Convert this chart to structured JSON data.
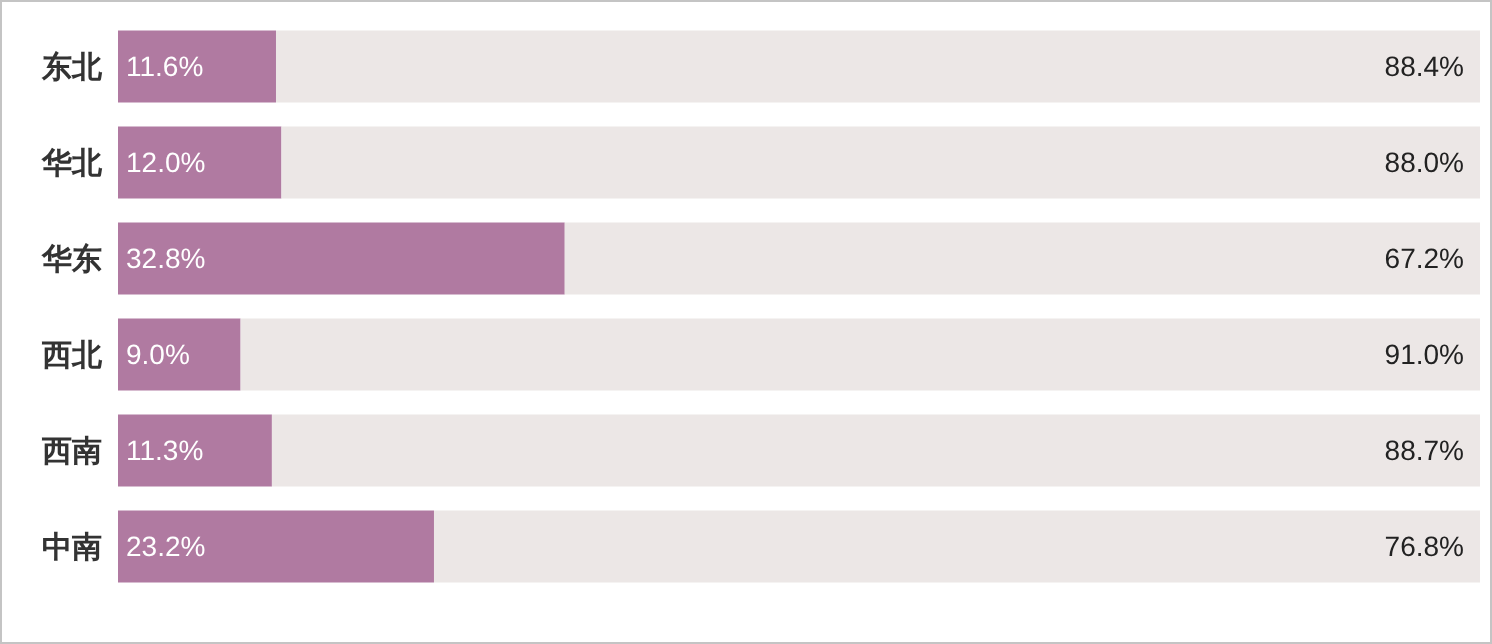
{
  "chart_data": {
    "type": "bar",
    "orientation": "horizontal",
    "stacked": true,
    "categories": [
      "东北",
      "华北",
      "华东",
      "西北",
      "西南",
      "中南"
    ],
    "series": [
      {
        "color": "#b07aa1",
        "values": [
          11.6,
          12.0,
          32.8,
          9.0,
          11.3,
          23.2
        ],
        "value_labels": [
          "11.6%",
          "12.0%",
          "32.8%",
          "9.0%",
          "11.3%",
          "23.2%"
        ]
      },
      {
        "color": "#ece7e6",
        "values": [
          88.4,
          88.0,
          67.2,
          91.0,
          88.7,
          76.8
        ],
        "value_labels": [
          "88.4%",
          "88.0%",
          "67.2%",
          "91.0%",
          "88.7%",
          "76.8%"
        ]
      }
    ],
    "xlim": [
      0,
      100
    ],
    "tick_labels": "y",
    "legend": false,
    "grid": false
  }
}
